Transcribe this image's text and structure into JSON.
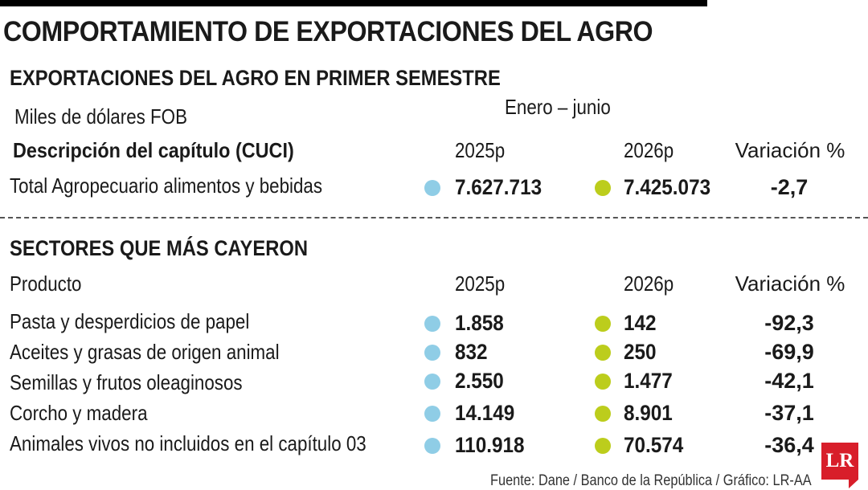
{
  "title": "COMPORTAMIENTO DE EXPORTACIONES DEL AGRO",
  "colors": {
    "series_2025": "#8fcde6",
    "series_2026": "#bccd1c",
    "logo": "#d81e2a"
  },
  "top": {
    "heading": "EXPORTACIONES DEL AGRO EN PRIMER SEMESTRE",
    "unit": "Miles de dólares FOB",
    "period": "Enero – junio",
    "label_col": "Descripción del capítulo (CUCI)",
    "col_2025": "2025p",
    "col_2026": "2026p",
    "col_var": "Variación %",
    "row": {
      "label": "Total Agropecuario alimentos y bebidas",
      "v2025": "7.627.713",
      "v2026": "7.425.073",
      "var": "-2,7"
    }
  },
  "bottom": {
    "heading": "SECTORES QUE MÁS CAYERON",
    "label_col": "Producto",
    "col_2025": "2025p",
    "col_2026": "2026p",
    "col_var": "Variación %"
  },
  "chart_data": {
    "type": "table",
    "series": [
      {
        "name": "2025p"
      },
      {
        "name": "2026p"
      }
    ],
    "rows": [
      {
        "label": "Pasta y desperdicios de papel",
        "v2025": "1.858",
        "v2026": "142",
        "var": "-92,3"
      },
      {
        "label": "Aceites y grasas de origen animal",
        "v2025": "832",
        "v2026": "250",
        "var": "-69,9"
      },
      {
        "label": "Semillas y frutos oleaginosos",
        "v2025": "2.550",
        "v2026": "1.477",
        "var": "-42,1"
      },
      {
        "label": "Corcho y madera",
        "v2025": "14.149",
        "v2026": "8.901",
        "var": "-37,1"
      },
      {
        "label": "Animales vivos no incluidos en el capítulo 03",
        "v2025": "110.918",
        "v2026": "70.574",
        "var": "-36,4"
      }
    ]
  },
  "source": "Fuente: Dane / Banco de la República / Gráfico: LR-AA",
  "logo": {
    "text": "LR"
  }
}
